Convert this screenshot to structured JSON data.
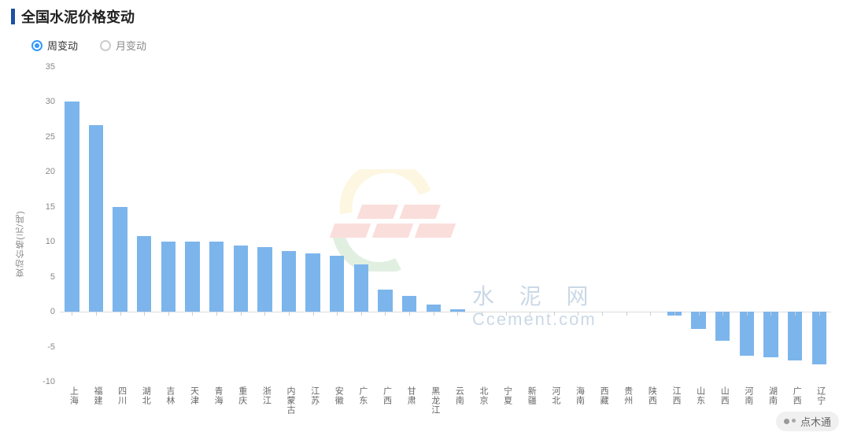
{
  "header": {
    "title": "全国水泥价格变动"
  },
  "controls": {
    "weekly": "周变动",
    "monthly": "月变动",
    "selected": "weekly"
  },
  "watermark": {
    "zh": "水 泥 网",
    "en": "Ccement.com"
  },
  "footer": {
    "brand": "点木通"
  },
  "chart": {
    "type": "bar",
    "ylabel": "变动价格(元/吨)",
    "ylabel_fontsize": 11,
    "ylim": [
      -10,
      35
    ],
    "ytick_step": 5,
    "bar_color": "#7cb5ec",
    "background_color": "#ffffff",
    "axis_color": "#dddddd",
    "tick_label_color": "#888888",
    "tick_label_fontsize": 11,
    "bar_width_ratio": 0.6,
    "categories": [
      "上海",
      "福建",
      "四川",
      "湖北",
      "吉林",
      "天津",
      "青海",
      "重庆",
      "浙江",
      "内蒙古",
      "江苏",
      "安徽",
      "广东",
      "广西",
      "甘肃",
      "黑龙江",
      "云南",
      "北京",
      "宁夏",
      "新疆",
      "河北",
      "海南",
      "西藏",
      "贵州",
      "陕西",
      "江西",
      "山东",
      "山西",
      "河南",
      "湖南",
      "广西",
      "辽宁"
    ],
    "values": [
      30.0,
      26.7,
      15.0,
      10.8,
      10.0,
      10.0,
      10.0,
      9.5,
      9.2,
      8.7,
      8.3,
      8.0,
      6.8,
      3.2,
      2.3,
      1.0,
      0.3,
      0,
      0,
      0,
      0,
      0,
      0,
      0,
      0,
      -0.5,
      -2.5,
      -4.2,
      -6.3,
      -6.5,
      -7.0,
      -7.5
    ]
  }
}
